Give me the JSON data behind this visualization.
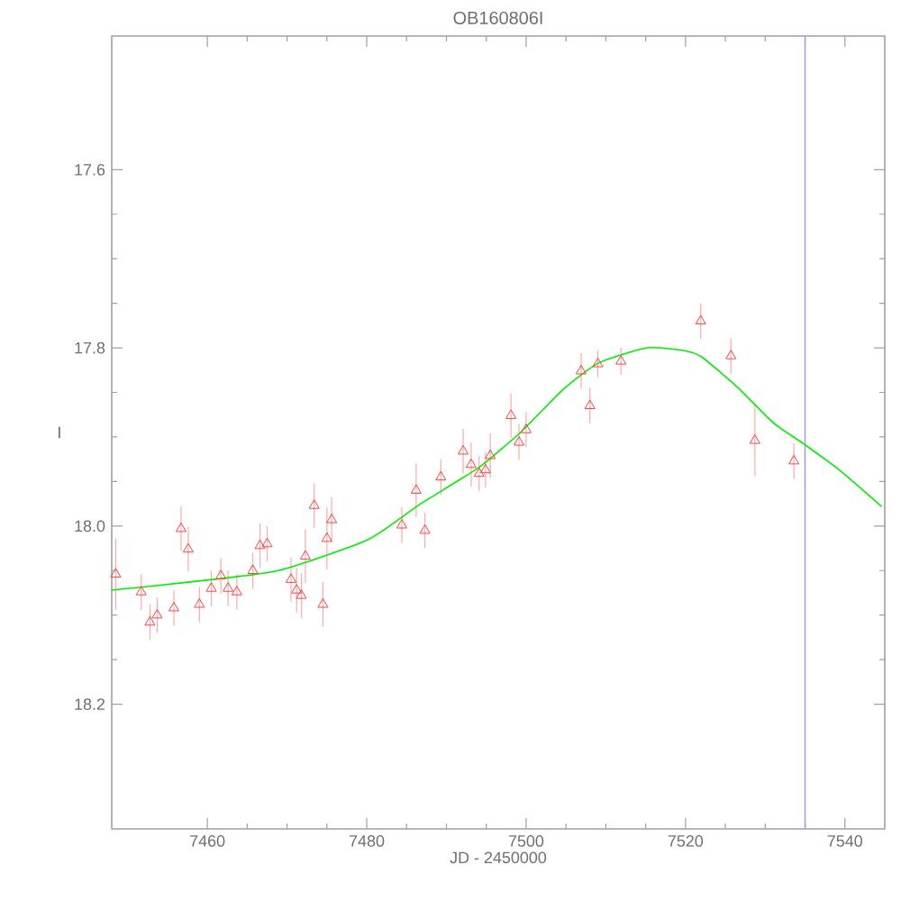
{
  "chart_data": {
    "type": "scatter",
    "title": "OB160806I",
    "xlabel": "JD - 2450000",
    "ylabel": "I",
    "xlim": [
      7448,
      7545
    ],
    "ylim": [
      18.34,
      17.45
    ],
    "xticks": [
      7460,
      7480,
      7500,
      7520,
      7540
    ],
    "yticks": [
      {
        "value": 17.6,
        "label": "17.6"
      },
      {
        "value": 17.8,
        "label": "17.8"
      },
      {
        "value": 18.0,
        "label": "18.0"
      },
      {
        "value": 18.2,
        "label": "18.2"
      }
    ],
    "grid": false,
    "ref_lines": [
      {
        "axis": "x",
        "value": 7535,
        "color": "#a0a0f0"
      }
    ],
    "series": [
      {
        "color": "#ff4040",
        "marker": "triangle",
        "x": [
          7448.5,
          7451.7,
          7452.8,
          7453.7,
          7455.8,
          7456.7,
          7457.6,
          7459.0,
          7460.5,
          7461.7,
          7462.6,
          7463.7,
          7465.7,
          7466.6,
          7467.5,
          7470.5,
          7471.2,
          7471.8,
          7472.3,
          7473.4,
          7474.5,
          7475.6,
          7475.0,
          7484.4,
          7486.2,
          7487.3,
          7489.3,
          7492.1,
          7493.1,
          7494.1,
          7494.9,
          7495.5,
          7498.1,
          7499.1,
          7500.0,
          7506.9,
          7508.0,
          7509.0,
          7511.9,
          7521.9,
          7525.7,
          7528.7,
          7533.6
        ],
        "values": [
          18.054,
          18.074,
          18.108,
          18.1,
          18.092,
          18.003,
          18.026,
          18.088,
          18.07,
          18.056,
          18.07,
          18.074,
          18.05,
          18.022,
          18.02,
          18.06,
          18.072,
          18.078,
          18.034,
          17.977,
          18.088,
          17.993,
          18.014,
          17.999,
          17.96,
          18.005,
          17.945,
          17.916,
          17.931,
          17.941,
          17.937,
          17.921,
          17.876,
          17.906,
          17.892,
          17.826,
          17.865,
          17.818,
          17.815,
          17.77,
          17.809,
          17.904,
          17.927
        ],
        "errors": [
          0.04,
          0.02,
          0.02,
          0.02,
          0.02,
          0.025,
          0.025,
          0.02,
          0.02,
          0.02,
          0.02,
          0.02,
          0.02,
          0.025,
          0.02,
          0.025,
          0.025,
          0.025,
          0.03,
          0.025,
          0.025,
          0.025,
          0.035,
          0.02,
          0.03,
          0.02,
          0.02,
          0.025,
          0.025,
          0.02,
          0.02,
          0.025,
          0.025,
          0.02,
          0.02,
          0.02,
          0.02,
          0.015,
          0.015,
          0.02,
          0.02,
          0.04,
          0.02
        ]
      },
      {
        "type": "line",
        "color": "#00ee00",
        "marker": "none",
        "x": [
          7448.0,
          7457.6,
          7468.9,
          7480.2,
          7486.6,
          7494.1,
          7499.4,
          7504.6,
          7509.1,
          7515.2,
          7519.7,
          7522.0,
          7526.5,
          7531.0,
          7534.7,
          7539.3,
          7544.6
        ],
        "values": [
          18.072,
          18.063,
          18.05,
          18.015,
          17.976,
          17.934,
          17.894,
          17.847,
          17.817,
          17.8,
          17.803,
          17.81,
          17.844,
          17.884,
          17.907,
          17.937,
          17.978
        ]
      }
    ]
  }
}
